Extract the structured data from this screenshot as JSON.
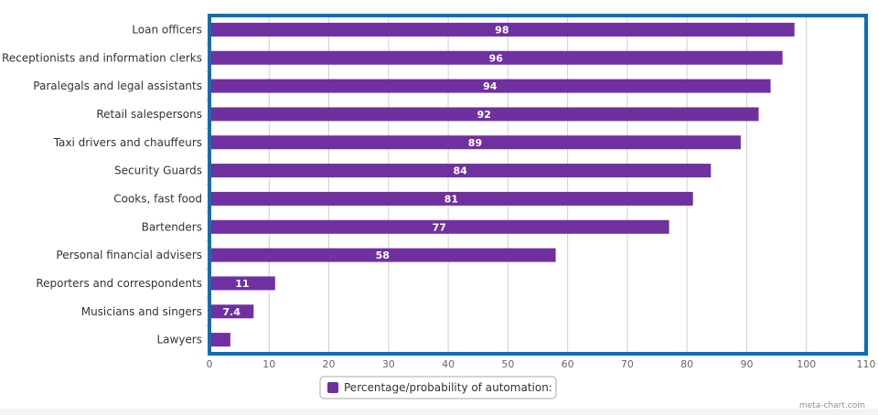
{
  "chart_data": {
    "type": "bar",
    "orientation": "horizontal",
    "title": "",
    "xlabel": "",
    "ylabel": "",
    "categories": [
      "Loan officers",
      "Receptionists and information clerks",
      "Paralegals and legal assistants",
      "Retail salespersons",
      "Taxi drivers and chauffeurs",
      "Security Guards",
      "Cooks, fast food",
      "Bartenders",
      "Personal financial advisers",
      "Reporters and correspondents",
      "Musicians and singers",
      "Lawyers"
    ],
    "series": [
      {
        "name": "Percentage/probability of automation:",
        "color": "#7030a0",
        "values": [
          98,
          96,
          94,
          92,
          89,
          84,
          81,
          77,
          58,
          11,
          7.4,
          3.5
        ],
        "data_labels": [
          "98",
          "96",
          "94",
          "92",
          "89",
          "84",
          "81",
          "77",
          "58",
          "11",
          "7.4",
          ""
        ]
      }
    ],
    "xlim": [
      0,
      110
    ],
    "xticks": [
      0,
      10,
      20,
      30,
      40,
      50,
      60,
      70,
      80,
      90,
      100,
      110
    ],
    "grid": true,
    "legend": "bottom-center",
    "plot_border_color": "#0a6fb8",
    "credit": "meta-chart.com"
  }
}
